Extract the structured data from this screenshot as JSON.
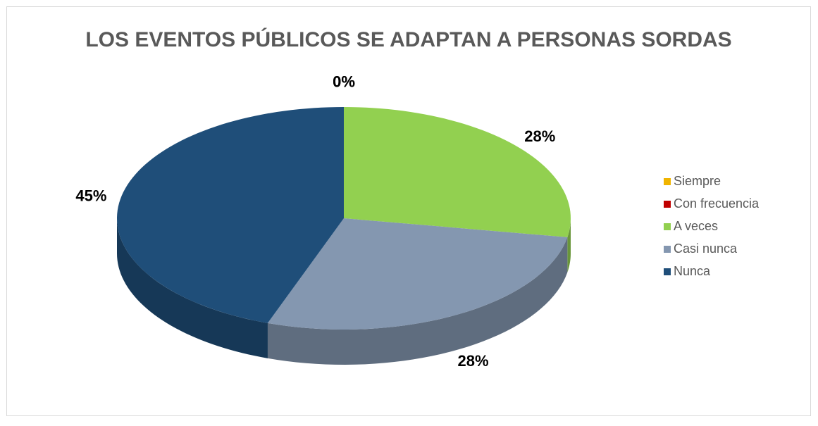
{
  "chart_data": {
    "type": "pie",
    "title": "LOS EVENTOS PÚBLICOS SE ADAPTAN A PERSONAS SORDAS",
    "categories": [
      "Siempre",
      "Con frecuencia",
      "A veces",
      "Casi nunca",
      "Nunca"
    ],
    "values": [
      0,
      0,
      28,
      28,
      45
    ],
    "colors": [
      "#f0b400",
      "#c00000",
      "#92d050",
      "#8497b0",
      "#1f4e79"
    ],
    "legend": "right"
  }
}
